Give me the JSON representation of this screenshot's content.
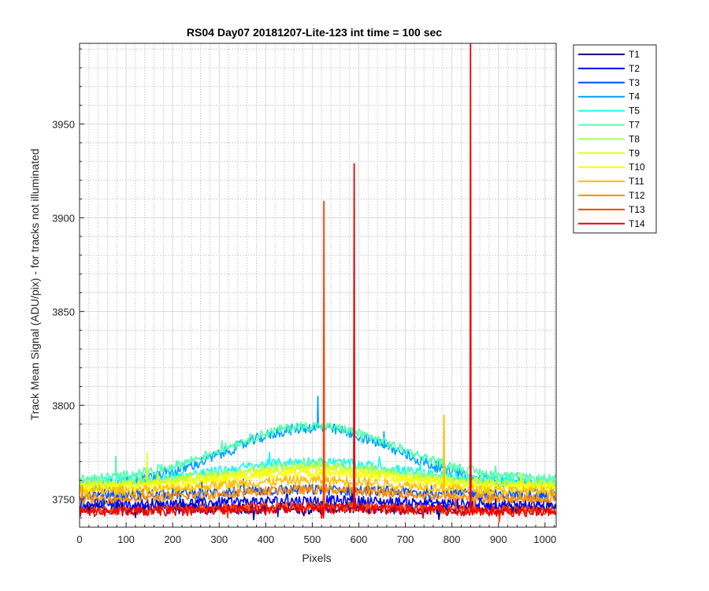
{
  "chart_data": {
    "type": "line",
    "title": "RS04 Day07 20181207-Lite-123 int time = 100 sec",
    "xlabel": "Pixels",
    "ylabel": "Track Mean Signal (ADU/pix) - for tracks not illuminated",
    "xlim": [
      0,
      1024
    ],
    "ylim": [
      3735,
      3993
    ],
    "x_ticks": [
      0,
      100,
      200,
      300,
      400,
      500,
      600,
      700,
      800,
      900,
      1000
    ],
    "y_ticks": [
      3750,
      3800,
      3850,
      3900,
      3950
    ],
    "grid": "major and minor",
    "legend_position": "outside-top-right",
    "series": [
      {
        "name": "T1",
        "color": "#00008F",
        "profile": {
          "ends": 3745,
          "peak": 3745,
          "noise": 3
        },
        "spikes": []
      },
      {
        "name": "T2",
        "color": "#0000EF",
        "profile": {
          "ends": 3747,
          "peak": 3749,
          "noise": 3
        },
        "spikes": []
      },
      {
        "name": "T3",
        "color": "#0050FF",
        "profile": {
          "ends": 3752,
          "peak": 3755,
          "noise": 3
        },
        "spikes": []
      },
      {
        "name": "T4",
        "color": "#00A0FF",
        "profile": {
          "ends": 3756,
          "peak": 3788,
          "noise": 3
        },
        "spikes": [
          {
            "x": 512,
            "y": 3805
          },
          {
            "x": 655,
            "y": 3777
          }
        ]
      },
      {
        "name": "T5",
        "color": "#10FFEF",
        "profile": {
          "ends": 3759,
          "peak": 3770,
          "noise": 2.5
        },
        "spikes": []
      },
      {
        "name": "T7",
        "color": "#50FFAF",
        "profile": {
          "ends": 3760,
          "peak": 3789,
          "noise": 2.5
        },
        "spikes": [
          {
            "x": 78,
            "y": 3773
          }
        ]
      },
      {
        "name": "T8",
        "color": "#A0FF60",
        "profile": {
          "ends": 3758,
          "peak": 3768,
          "noise": 2.5
        },
        "spikes": []
      },
      {
        "name": "T9",
        "color": "#DFFF20",
        "profile": {
          "ends": 3757,
          "peak": 3766,
          "noise": 2.5
        },
        "spikes": [
          {
            "x": 145,
            "y": 3775
          }
        ]
      },
      {
        "name": "T10",
        "color": "#FFFF00",
        "profile": {
          "ends": 3756,
          "peak": 3764,
          "noise": 2.5
        },
        "spikes": []
      },
      {
        "name": "T11",
        "color": "#FFBF00",
        "profile": {
          "ends": 3754,
          "peak": 3760,
          "noise": 2.5
        },
        "spikes": [
          {
            "x": 783,
            "y": 3795
          }
        ]
      },
      {
        "name": "T12",
        "color": "#FF8F00",
        "profile": {
          "ends": 3750,
          "peak": 3755,
          "noise": 2.5
        },
        "spikes": []
      },
      {
        "name": "T13",
        "color": "#FF4000",
        "profile": {
          "ends": 3744,
          "peak": 3746,
          "noise": 2.5
        },
        "spikes": [
          {
            "x": 525,
            "y": 3909
          }
        ]
      },
      {
        "name": "T14",
        "color": "#EF0000",
        "profile": {
          "ends": 3743,
          "peak": 3745,
          "noise": 2.5
        },
        "spikes": [
          {
            "x": 590,
            "y": 3929
          },
          {
            "x": 840,
            "y": 3993
          }
        ]
      }
    ]
  }
}
